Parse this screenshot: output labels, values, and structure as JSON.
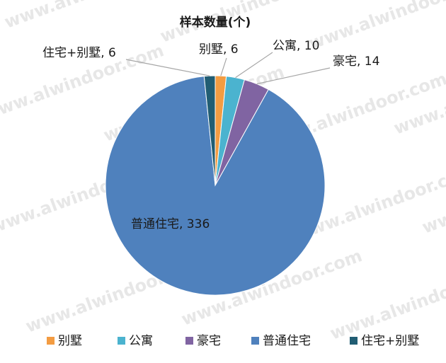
{
  "watermark": "www.alwindoor.com",
  "chart_data": {
    "type": "pie",
    "title": "样本数量(个)",
    "categories": [
      "别墅",
      "公寓",
      "豪宅",
      "普通住宅",
      "住宅+别墅"
    ],
    "values": [
      6,
      10,
      14,
      336,
      6
    ],
    "colors": [
      "#f39c42",
      "#4bb3cf",
      "#8064a2",
      "#4f81bd",
      "#215d73"
    ],
    "data_labels": [
      "别墅, 6",
      "公寓, 10",
      "豪宅, 14",
      "普通住宅, 336",
      "住宅+别墅, 6"
    ],
    "legend": {
      "position": "bottom",
      "entries": [
        "别墅",
        "公寓",
        "豪宅",
        "普通住宅",
        "住宅+别墅"
      ]
    }
  }
}
